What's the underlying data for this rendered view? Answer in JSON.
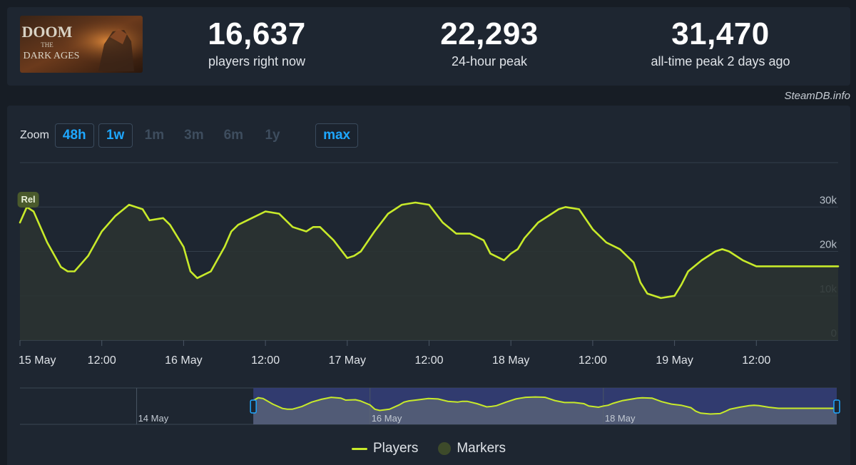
{
  "game": {
    "title_line1": "DOOM",
    "title_line2": "THE",
    "title_line3": "DARK AGES"
  },
  "stats": [
    {
      "value": "16,637",
      "label": "players right now"
    },
    {
      "value": "22,293",
      "label": "24-hour peak"
    },
    {
      "value": "31,470",
      "label": "all-time peak 2 days ago"
    }
  ],
  "credit": "SteamDB.info",
  "zoom": {
    "label": "Zoom",
    "buttons": [
      {
        "label": "48h",
        "enabled": true
      },
      {
        "label": "1w",
        "enabled": true
      },
      {
        "label": "1m",
        "enabled": false
      },
      {
        "label": "3m",
        "enabled": false
      },
      {
        "label": "6m",
        "enabled": false
      },
      {
        "label": "1y",
        "enabled": false
      },
      {
        "label": "max",
        "enabled": true
      }
    ]
  },
  "legend": {
    "players": "Players",
    "markers": "Markers"
  },
  "colors": {
    "line": "#c8ea2a",
    "accent": "#1ea7ff",
    "marker": "#4a5a2c",
    "navigator_selection": "#35407a"
  },
  "chart_data": {
    "type": "line",
    "series": [
      {
        "name": "Players",
        "x": [
          "2025-05-15 00:00",
          "2025-05-15 01:00",
          "2025-05-15 02:00",
          "2025-05-15 04:00",
          "2025-05-15 06:00",
          "2025-05-15 07:00",
          "2025-05-15 08:00",
          "2025-05-15 10:00",
          "2025-05-15 12:00",
          "2025-05-15 14:00",
          "2025-05-15 16:00",
          "2025-05-15 18:00",
          "2025-05-15 19:00",
          "2025-05-15 21:00",
          "2025-05-15 22:00",
          "2025-05-16 00:00",
          "2025-05-16 01:00",
          "2025-05-16 02:00",
          "2025-05-16 04:00",
          "2025-05-16 06:00",
          "2025-05-16 07:00",
          "2025-05-16 08:00",
          "2025-05-16 10:00",
          "2025-05-16 12:00",
          "2025-05-16 14:00",
          "2025-05-16 16:00",
          "2025-05-16 18:00",
          "2025-05-16 19:00",
          "2025-05-16 20:00",
          "2025-05-16 22:00",
          "2025-05-17 00:00",
          "2025-05-17 01:00",
          "2025-05-17 02:00",
          "2025-05-17 04:00",
          "2025-05-17 06:00",
          "2025-05-17 07:00",
          "2025-05-17 08:00",
          "2025-05-17 10:00",
          "2025-05-17 12:00",
          "2025-05-17 14:00",
          "2025-05-17 16:00",
          "2025-05-17 18:00",
          "2025-05-17 20:00",
          "2025-05-17 21:00",
          "2025-05-17 23:00",
          "2025-05-18 00:00",
          "2025-05-18 01:00",
          "2025-05-18 02:00",
          "2025-05-18 04:00",
          "2025-05-18 06:00",
          "2025-05-18 07:00",
          "2025-05-18 08:00",
          "2025-05-18 10:00",
          "2025-05-18 12:00",
          "2025-05-18 14:00",
          "2025-05-18 16:00",
          "2025-05-18 18:00",
          "2025-05-18 19:00",
          "2025-05-18 20:00",
          "2025-05-18 22:00",
          "2025-05-19 00:00",
          "2025-05-19 01:00",
          "2025-05-19 02:00",
          "2025-05-19 04:00",
          "2025-05-19 06:00",
          "2025-05-19 07:00",
          "2025-05-19 08:00",
          "2025-05-19 10:00",
          "2025-05-19 12:00",
          "2025-05-19 14:00",
          "2025-05-19 16:00",
          "2025-05-19 18:00",
          "2025-05-19 19:00",
          "2025-05-19 20:00",
          "2025-05-19 22:00",
          "2025-05-20 00:00"
        ],
        "values": [
          26500,
          30000,
          29000,
          22000,
          16500,
          15500,
          15500,
          19000,
          24500,
          28000,
          30500,
          29500,
          27000,
          27500,
          26000,
          21000,
          15500,
          14000,
          15500,
          21000,
          24500,
          26000,
          27500,
          29000,
          28500,
          25500,
          24500,
          25500,
          25500,
          22500,
          18500,
          19000,
          20000,
          24500,
          28500,
          29500,
          30500,
          31000,
          30500,
          26500,
          24000,
          24000,
          22500,
          19500,
          18000,
          19500,
          20500,
          23000,
          26500,
          28500,
          29500,
          30000,
          29500,
          25000,
          22000,
          20500,
          17500,
          13000,
          10500,
          9500,
          10000,
          12500,
          15500,
          18000,
          20000,
          20500,
          20000,
          18000,
          16637,
          16637,
          16637,
          16637,
          16637,
          16637,
          16637,
          16637
        ]
      }
    ],
    "x_tick_labels": [
      "15 May",
      "12:00",
      "16 May",
      "12:00",
      "17 May",
      "12:00",
      "18 May",
      "12:00",
      "19 May",
      "12:00"
    ],
    "y_tick_labels": [
      "0",
      "10k",
      "20k",
      "30k"
    ],
    "ylim": [
      0,
      40000
    ],
    "marker_label": "Rel",
    "navigator_labels": [
      "14 May",
      "16 May",
      "18 May"
    ],
    "grid": true,
    "legend_position": "bottom-center"
  }
}
